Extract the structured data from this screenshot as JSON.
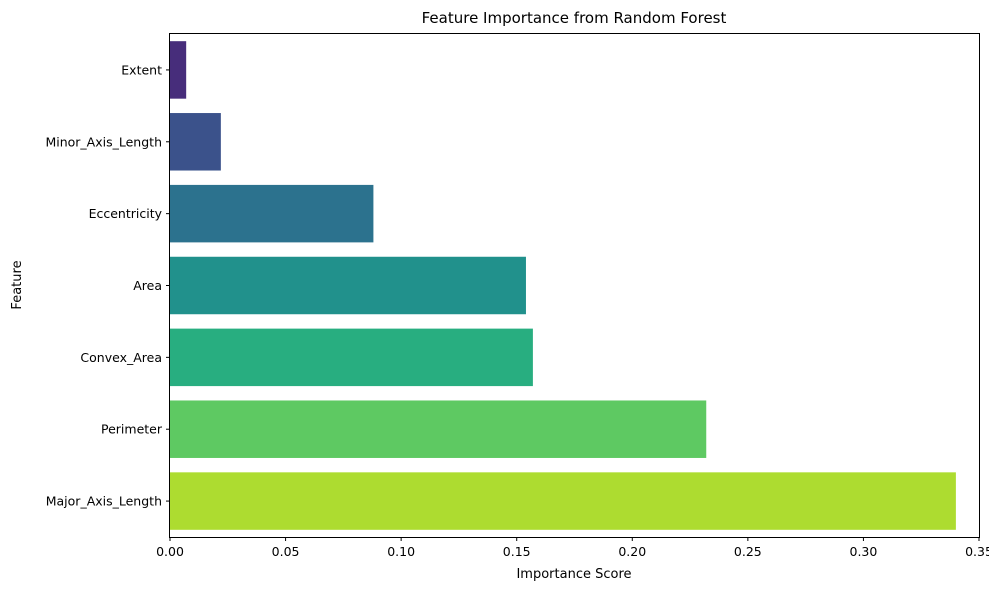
{
  "chart_data": {
    "type": "bar",
    "orientation": "horizontal",
    "title": "Feature Importance from Random Forest",
    "xlabel": "Importance Score",
    "ylabel": "Feature",
    "categories": [
      "Extent",
      "Minor_Axis_Length",
      "Eccentricity",
      "Area",
      "Convex_Area",
      "Perimeter",
      "Major_Axis_Length"
    ],
    "values": [
      0.007,
      0.022,
      0.088,
      0.154,
      0.157,
      0.232,
      0.34
    ],
    "colors": [
      "#472d7b",
      "#3b528b",
      "#2c728e",
      "#21918c",
      "#28ae80",
      "#5ec962",
      "#addc30"
    ],
    "xlim": [
      0,
      0.35
    ],
    "xticks": [
      0.0,
      0.05,
      0.1,
      0.15,
      0.2,
      0.25,
      0.3,
      0.35
    ],
    "xtick_labels": [
      "0.00",
      "0.05",
      "0.10",
      "0.15",
      "0.20",
      "0.25",
      "0.30",
      "0.35"
    ],
    "grid": false,
    "legend": "none",
    "palette": "viridis"
  }
}
